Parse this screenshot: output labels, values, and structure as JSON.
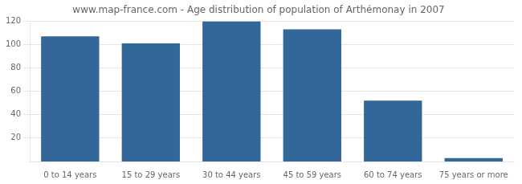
{
  "chart_data": {
    "type": "bar",
    "title": "www.map-france.com - Age distribution of population of Arthémonay in 2007",
    "categories": [
      "0 to 14 years",
      "15 to 29 years",
      "30 to 44 years",
      "45 to 59 years",
      "60 to 74 years",
      "75 years or more"
    ],
    "values": [
      107,
      101,
      120,
      113,
      52,
      3
    ],
    "color": "#336699",
    "ylim": [
      0,
      120
    ],
    "yticks": [
      20,
      40,
      60,
      80,
      100,
      120
    ],
    "grid": true
  }
}
